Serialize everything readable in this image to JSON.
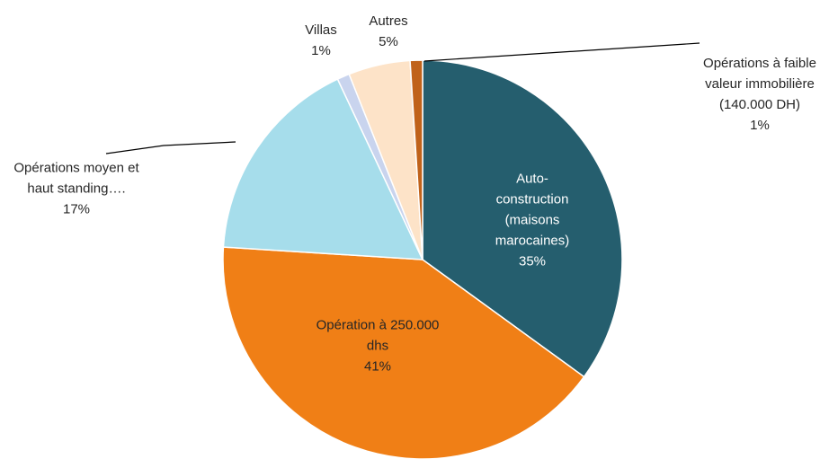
{
  "chart_data": {
    "type": "pie",
    "categories": [
      "Auto-construction (maisons marocaines)",
      "Opération à 250.000 dhs",
      "Opérations moyen et haut standing….",
      "Villas",
      "Autres",
      "Opérations à faible valeur immobilière (140.000 DH)"
    ],
    "values": [
      35,
      41,
      17,
      1,
      5,
      1
    ],
    "value_labels": [
      "35%",
      "41%",
      "17%",
      "1%",
      "5%",
      "1%"
    ],
    "colors": [
      "#255e6e",
      "#f07f16",
      "#a6ddeb",
      "#c9d4ee",
      "#fde3c8",
      "#c0621a"
    ]
  }
}
